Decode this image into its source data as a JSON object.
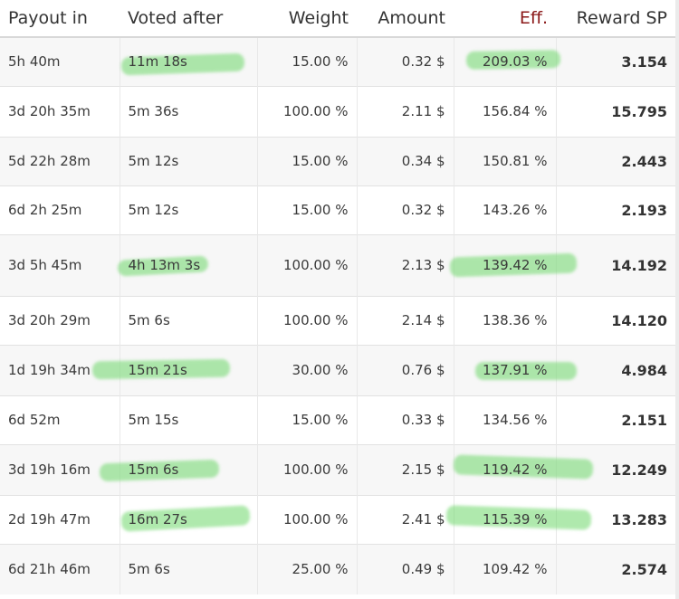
{
  "columns": [
    "Payout in",
    "Voted after",
    "Weight",
    "Amount",
    "Eff.",
    "Reward SP"
  ],
  "rows": [
    {
      "payout": "5h 40m",
      "voted": "11m 18s",
      "weight": "15.00 %",
      "amount": "0.32 $",
      "eff": "209.03 %",
      "reward": "3.154"
    },
    {
      "payout": "3d 20h 35m",
      "voted": "5m 36s",
      "weight": "100.00 %",
      "amount": "2.11 $",
      "eff": "156.84 %",
      "reward": "15.795"
    },
    {
      "payout": "5d 22h 28m",
      "voted": "5m 12s",
      "weight": "15.00 %",
      "amount": "0.34 $",
      "eff": "150.81 %",
      "reward": "2.443"
    },
    {
      "payout": "6d 2h 25m",
      "voted": "5m 12s",
      "weight": "15.00 %",
      "amount": "0.32 $",
      "eff": "143.26 %",
      "reward": "2.193"
    },
    {
      "payout": "3d 5h 45m",
      "voted": "4h 13m 3s",
      "weight": "100.00 %",
      "amount": "2.13 $",
      "eff": "139.42 %",
      "reward": "14.192"
    },
    {
      "payout": "3d 20h 29m",
      "voted": "5m 6s",
      "weight": "100.00 %",
      "amount": "2.14 $",
      "eff": "138.36 %",
      "reward": "14.120"
    },
    {
      "payout": "1d 19h 34m",
      "voted": "15m 21s",
      "weight": "30.00 %",
      "amount": "0.76 $",
      "eff": "137.91 %",
      "reward": "4.984"
    },
    {
      "payout": "6d 52m",
      "voted": "5m 15s",
      "weight": "15.00 %",
      "amount": "0.33 $",
      "eff": "134.56 %",
      "reward": "2.151"
    },
    {
      "payout": "3d 19h 16m",
      "voted": "15m 6s",
      "weight": "100.00 %",
      "amount": "2.15 $",
      "eff": "119.42 %",
      "reward": "12.249"
    },
    {
      "payout": "2d 19h 47m",
      "voted": "16m 27s",
      "weight": "100.00 %",
      "amount": "2.41 $",
      "eff": "115.39 %",
      "reward": "13.283"
    },
    {
      "payout": "6d 21h 46m",
      "voted": "5m 6s",
      "weight": "25.00 %",
      "amount": "0.49 $",
      "eff": "109.42 %",
      "reward": "2.574"
    }
  ],
  "highlight": {
    "color": "#6ed769",
    "voted_rows": [
      0,
      4,
      6,
      8,
      9
    ],
    "eff_rows": [
      0,
      4,
      6,
      8,
      9
    ]
  }
}
